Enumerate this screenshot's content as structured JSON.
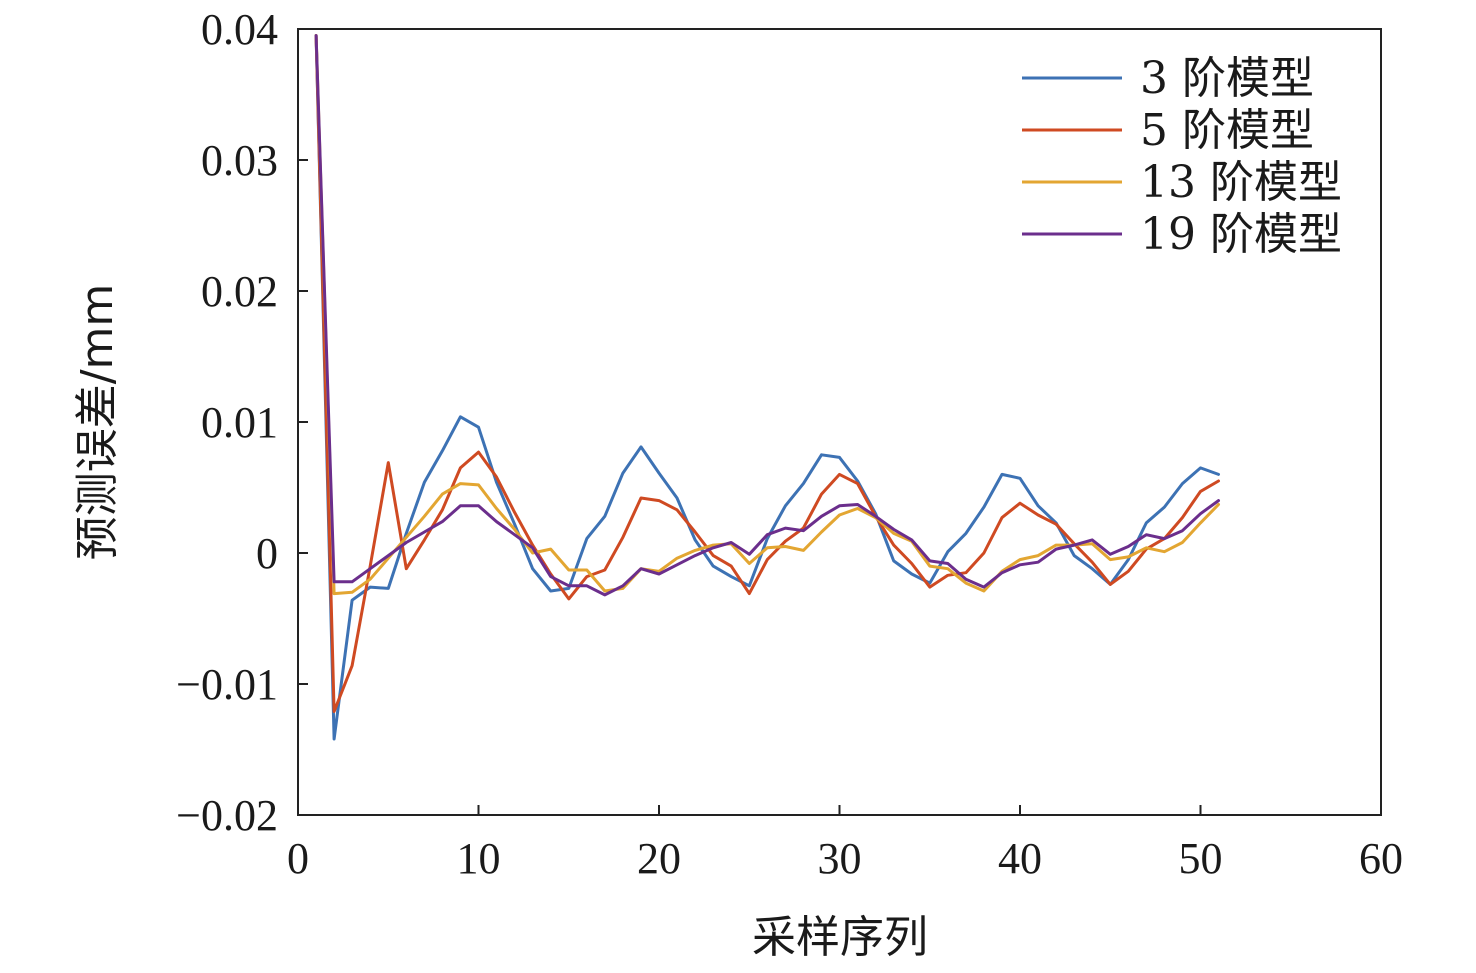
{
  "chart_data": {
    "type": "line",
    "title": "",
    "xlabel": "采样序列",
    "ylabel": "预测误差/mm",
    "xlim": [
      0,
      60
    ],
    "ylim": [
      -0.02,
      0.04
    ],
    "xticks": [
      0,
      10,
      20,
      30,
      40,
      50,
      60
    ],
    "xtick_labels": [
      "0",
      "10",
      "20",
      "30",
      "40",
      "50",
      "60"
    ],
    "yticks": [
      -0.02,
      -0.01,
      0,
      0.01,
      0.02,
      0.03,
      0.04
    ],
    "ytick_labels": [
      "−0.02",
      "−0.01",
      "0",
      "0.01",
      "0.02",
      "0.03",
      "0.04"
    ],
    "grid": false,
    "legend_position": "top-right",
    "x": [
      1,
      2,
      3,
      4,
      5,
      6,
      7,
      8,
      9,
      10,
      11,
      12,
      13,
      14,
      15,
      16,
      17,
      18,
      19,
      20,
      21,
      22,
      23,
      24,
      25,
      26,
      27,
      28,
      29,
      30,
      31,
      32,
      33,
      34,
      35,
      36,
      37,
      38,
      39,
      40,
      41,
      42,
      43,
      44,
      45,
      46,
      47,
      48,
      49,
      50,
      51
    ],
    "series": [
      {
        "name": "3 阶模型",
        "color": "#3d72b4",
        "values": [
          0.0395,
          -0.0142,
          -0.0036,
          -0.0026,
          -0.0027,
          0.0015,
          0.0054,
          0.0078,
          0.0104,
          0.0096,
          0.0054,
          0.0022,
          -0.0012,
          -0.0029,
          -0.0027,
          0.0011,
          0.0028,
          0.0061,
          0.0081,
          0.0061,
          0.0042,
          0.001,
          -0.001,
          -0.0018,
          -0.0025,
          0.0011,
          0.0036,
          0.0053,
          0.0075,
          0.0073,
          0.0055,
          0.003,
          -0.0006,
          -0.0016,
          -0.0023,
          0.0001,
          0.0015,
          0.0035,
          0.006,
          0.0057,
          0.0036,
          0.0023,
          -0.0002,
          -0.0012,
          -0.0024,
          -0.0005,
          0.0023,
          0.0035,
          0.0053,
          0.0065,
          0.006
        ]
      },
      {
        "name": "5 阶模型",
        "color": "#cf4a22",
        "values": [
          0.0395,
          -0.0121,
          -0.0086,
          -0.001,
          0.0069,
          -0.0012,
          0.001,
          0.0033,
          0.0065,
          0.0077,
          0.0058,
          0.0031,
          0.0006,
          -0.0016,
          -0.0035,
          -0.0018,
          -0.0013,
          0.0012,
          0.0042,
          0.004,
          0.0033,
          0.0016,
          -0.0002,
          -0.001,
          -0.0031,
          -0.0005,
          0.0009,
          0.0019,
          0.0045,
          0.006,
          0.0053,
          0.0028,
          0.0006,
          -0.0008,
          -0.0026,
          -0.0017,
          -0.0015,
          0.0,
          0.0027,
          0.0038,
          0.0029,
          0.0022,
          0.0007,
          -0.0007,
          -0.0024,
          -0.0014,
          0.0003,
          0.0011,
          0.0027,
          0.0047,
          0.0055
        ]
      },
      {
        "name": "13 阶模型",
        "color": "#e3a632",
        "values": [
          0.0395,
          -0.0031,
          -0.003,
          -0.002,
          -0.0004,
          0.0012,
          0.0028,
          0.0045,
          0.0053,
          0.0052,
          0.0034,
          0.0018,
          0.0,
          0.0003,
          -0.0013,
          -0.0013,
          -0.0029,
          -0.0027,
          -0.0012,
          -0.0014,
          -0.0004,
          0.0002,
          0.0006,
          0.0007,
          -0.0008,
          0.0004,
          0.0005,
          0.0002,
          0.0016,
          0.0029,
          0.0034,
          0.0027,
          0.0015,
          0.0009,
          -0.001,
          -0.0012,
          -0.0023,
          -0.0029,
          -0.0014,
          -0.0005,
          -0.0002,
          0.0006,
          0.0006,
          0.0007,
          -0.0005,
          -0.0003,
          0.0004,
          0.0001,
          0.0008,
          0.0023,
          0.0037
        ]
      },
      {
        "name": "19 阶模型",
        "color": "#6b2e8c",
        "values": [
          0.0395,
          -0.0022,
          -0.0022,
          -0.0012,
          -0.0002,
          0.0008,
          0.0016,
          0.0024,
          0.0036,
          0.0036,
          0.0024,
          0.0014,
          0.0004,
          -0.0018,
          -0.0025,
          -0.0025,
          -0.0032,
          -0.0025,
          -0.0012,
          -0.0016,
          -0.0009,
          -0.0002,
          0.0004,
          0.0008,
          -0.0001,
          0.0014,
          0.0019,
          0.0017,
          0.0028,
          0.0036,
          0.0037,
          0.0028,
          0.0018,
          0.001,
          -0.0006,
          -0.0008,
          -0.002,
          -0.0026,
          -0.0015,
          -0.0009,
          -0.0007,
          0.0003,
          0.0006,
          0.001,
          -0.0001,
          0.0005,
          0.0014,
          0.0011,
          0.0017,
          0.003,
          0.004
        ]
      }
    ]
  }
}
